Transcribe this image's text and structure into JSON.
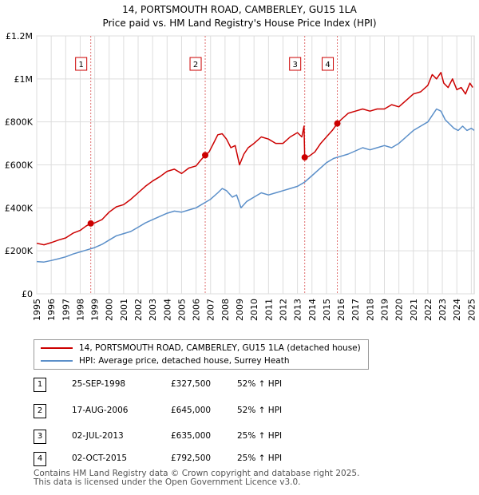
{
  "chart_data": {
    "type": "line",
    "title": "14, PORTSMOUTH ROAD, CAMBERLEY, GU15 1LA",
    "subtitle": "Price paid vs. HM Land Registry's House Price Index (HPI)",
    "xlabel": "",
    "ylabel": "",
    "xlim": [
      1995,
      2025.2
    ],
    "ylim": [
      0,
      1200000
    ],
    "x_ticks": [
      1995,
      1996,
      1997,
      1998,
      1999,
      2000,
      2001,
      2002,
      2003,
      2004,
      2005,
      2006,
      2007,
      2008,
      2009,
      2010,
      2011,
      2012,
      2013,
      2014,
      2015,
      2016,
      2017,
      2018,
      2019,
      2020,
      2021,
      2022,
      2023,
      2024,
      2025
    ],
    "y_ticks": [
      0,
      200000,
      400000,
      600000,
      800000,
      1000000,
      1200000
    ],
    "y_tick_labels": [
      "£0",
      "£200K",
      "£400K",
      "£600K",
      "£800K",
      "£1M",
      "£1.2M"
    ],
    "grid": true,
    "series": [
      {
        "name": "14, PORTSMOUTH ROAD, CAMBERLEY, GU15 1LA (detached house)",
        "color": "#cc0000",
        "x": [
          1995.0,
          1995.5,
          1996.0,
          1996.5,
          1997.0,
          1997.5,
          1998.0,
          1998.4,
          1998.73,
          1999.0,
          1999.5,
          2000.0,
          2000.5,
          2001.0,
          2001.5,
          2002.0,
          2002.5,
          2003.0,
          2003.5,
          2004.0,
          2004.5,
          2005.0,
          2005.5,
          2006.0,
          2006.3,
          2006.63,
          2006.9,
          2007.2,
          2007.5,
          2007.8,
          2008.1,
          2008.4,
          2008.7,
          2009.0,
          2009.3,
          2009.6,
          2010.0,
          2010.5,
          2011.0,
          2011.5,
          2012.0,
          2012.5,
          2013.0,
          2013.3,
          2013.45,
          2013.5,
          2013.8,
          2014.2,
          2014.6,
          2015.0,
          2015.4,
          2015.75,
          2016.0,
          2016.5,
          2017.0,
          2017.5,
          2018.0,
          2018.5,
          2019.0,
          2019.5,
          2020.0,
          2020.5,
          2021.0,
          2021.5,
          2022.0,
          2022.3,
          2022.6,
          2022.9,
          2023.1,
          2023.4,
          2023.7,
          2024.0,
          2024.3,
          2024.6,
          2024.9,
          2025.1
        ],
        "values": [
          235000,
          228000,
          238000,
          250000,
          260000,
          282000,
          295000,
          315000,
          327500,
          330000,
          345000,
          380000,
          405000,
          415000,
          440000,
          470000,
          500000,
          525000,
          545000,
          570000,
          580000,
          560000,
          585000,
          595000,
          620000,
          645000,
          660000,
          700000,
          740000,
          745000,
          720000,
          680000,
          690000,
          600000,
          650000,
          680000,
          700000,
          730000,
          720000,
          700000,
          700000,
          730000,
          750000,
          730000,
          780000,
          635000,
          640000,
          660000,
          700000,
          730000,
          760000,
          792500,
          810000,
          840000,
          850000,
          860000,
          850000,
          860000,
          860000,
          880000,
          870000,
          900000,
          930000,
          940000,
          970000,
          1020000,
          1000000,
          1030000,
          980000,
          960000,
          1000000,
          950000,
          960000,
          930000,
          980000,
          960000
        ]
      },
      {
        "name": "HPI: Average price, detached house, Surrey Heath",
        "color": "#5b8fc9",
        "x": [
          1995.0,
          1995.5,
          1996.0,
          1996.5,
          1997.0,
          1997.5,
          1998.0,
          1998.5,
          1999.0,
          1999.5,
          2000.0,
          2000.5,
          2001.0,
          2001.5,
          2002.0,
          2002.5,
          2003.0,
          2003.5,
          2004.0,
          2004.5,
          2005.0,
          2005.5,
          2006.0,
          2006.5,
          2007.0,
          2007.5,
          2007.8,
          2008.1,
          2008.5,
          2008.8,
          2009.1,
          2009.5,
          2010.0,
          2010.5,
          2011.0,
          2011.5,
          2012.0,
          2012.5,
          2013.0,
          2013.5,
          2014.0,
          2014.5,
          2015.0,
          2015.5,
          2016.0,
          2016.5,
          2017.0,
          2017.5,
          2018.0,
          2018.5,
          2019.0,
          2019.5,
          2020.0,
          2020.5,
          2021.0,
          2021.5,
          2022.0,
          2022.3,
          2022.6,
          2022.9,
          2023.2,
          2023.5,
          2023.8,
          2024.1,
          2024.4,
          2024.7,
          2025.0,
          2025.2
        ],
        "values": [
          150000,
          148000,
          155000,
          163000,
          172000,
          185000,
          195000,
          205000,
          215000,
          230000,
          250000,
          270000,
          280000,
          290000,
          310000,
          330000,
          345000,
          360000,
          375000,
          385000,
          380000,
          390000,
          400000,
          420000,
          440000,
          470000,
          490000,
          480000,
          450000,
          460000,
          400000,
          430000,
          450000,
          470000,
          460000,
          470000,
          480000,
          490000,
          500000,
          520000,
          550000,
          580000,
          610000,
          630000,
          640000,
          650000,
          665000,
          680000,
          670000,
          680000,
          690000,
          680000,
          700000,
          730000,
          760000,
          780000,
          800000,
          830000,
          860000,
          850000,
          810000,
          790000,
          770000,
          760000,
          780000,
          760000,
          770000,
          760000
        ]
      }
    ],
    "annotations": [
      {
        "label": "1",
        "date": "25-SEP-1998",
        "x": 1998.73,
        "price": 327500,
        "price_text": "£327,500",
        "hpi_text": "52% ↑ HPI"
      },
      {
        "label": "2",
        "date": "17-AUG-2006",
        "x": 2006.63,
        "price": 645000,
        "price_text": "£645,000",
        "hpi_text": "52% ↑ HPI"
      },
      {
        "label": "3",
        "date": "02-JUL-2013",
        "x": 2013.5,
        "price": 635000,
        "price_text": "£635,000",
        "hpi_text": "25% ↑ HPI"
      },
      {
        "label": "4",
        "date": "02-OCT-2015",
        "x": 2015.75,
        "price": 792500,
        "price_text": "£792,500",
        "hpi_text": "25% ↑ HPI"
      }
    ],
    "shaded_ranges": [
      [
        1998.73,
        2006.63
      ],
      [
        2013.5,
        2015.75
      ]
    ],
    "legend_position": "below"
  },
  "footer": {
    "line1": "Contains HM Land Registry data © Crown copyright and database right 2025.",
    "line2": "This data is licensed under the Open Government Licence v3.0."
  }
}
